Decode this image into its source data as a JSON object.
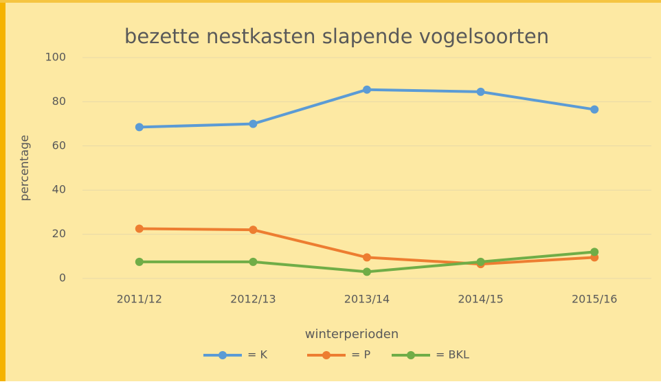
{
  "chart_data": {
    "type": "line",
    "title": "bezette nestkasten slapende vogelsoorten",
    "x_label": "winterperioden",
    "y_label": "percentage",
    "categories": [
      "2011/12",
      "2012/13",
      "2013/14",
      "2014/15",
      "2015/16"
    ],
    "series": [
      {
        "name": "= K",
        "color": "#5b9bd5",
        "values": [
          68.5,
          70,
          85.5,
          84.5,
          76.5
        ]
      },
      {
        "name": "= P",
        "color": "#ed7d31",
        "values": [
          22.5,
          22,
          9.5,
          6.5,
          9.5
        ]
      },
      {
        "name": "= BKL",
        "color": "#70ad47",
        "values": [
          7.5,
          7.5,
          3,
          7.5,
          12
        ]
      }
    ],
    "ylim": [
      0,
      100
    ],
    "yticks": [
      0,
      20,
      40,
      60,
      80,
      100
    ],
    "grid": true,
    "legend": "bottom"
  }
}
